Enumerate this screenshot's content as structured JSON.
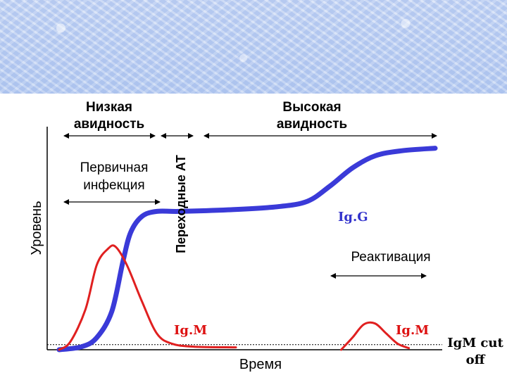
{
  "chart_data": {
    "type": "line",
    "ylabel": "Уровень",
    "xlabel": "Время",
    "x_range": [
      0,
      100
    ],
    "y_range": [
      0,
      100
    ],
    "series": [
      {
        "name": "IgG",
        "color": "#3a3ad8",
        "points": [
          [
            0,
            0
          ],
          [
            6,
            1.5
          ],
          [
            10,
            6
          ],
          [
            14,
            19
          ],
          [
            17,
            44
          ],
          [
            19,
            58
          ],
          [
            22,
            66
          ],
          [
            26,
            68.5
          ],
          [
            32,
            68.5
          ],
          [
            45,
            69.3
          ],
          [
            58,
            70.8
          ],
          [
            66,
            73.5
          ],
          [
            72,
            81
          ],
          [
            78,
            90
          ],
          [
            84,
            96
          ],
          [
            91,
            98.5
          ],
          [
            100,
            99.8
          ]
        ]
      },
      {
        "name": "IgM",
        "color": "#e02020",
        "points": [
          [
            0,
            0
          ],
          [
            3,
            4
          ],
          [
            7,
            20
          ],
          [
            10,
            42
          ],
          [
            13,
            50
          ],
          [
            15,
            51
          ],
          [
            18,
            42
          ],
          [
            22,
            24
          ],
          [
            26,
            8
          ],
          [
            30,
            3
          ],
          [
            36,
            1.5
          ],
          [
            47,
            1.2
          ]
        ]
      },
      {
        "name": "IgM (реактивация)",
        "color": "#e02020",
        "points": [
          [
            75,
            0
          ],
          [
            78,
            6
          ],
          [
            81,
            12.5
          ],
          [
            84,
            13
          ],
          [
            87,
            8
          ],
          [
            90,
            3
          ],
          [
            93,
            0.8
          ]
        ]
      }
    ],
    "cutoff": {
      "y": 2.5,
      "label_line1": "IgM cut",
      "label_line2": "off"
    },
    "labels": {
      "low_avidity_line1": "Низкая",
      "low_avidity_line2": "авидность",
      "high_avidity_line1": "Высокая",
      "high_avidity_line2": "авидность",
      "transitional": "Переходные АТ",
      "primary_line1": "Первичная",
      "primary_line2": "инфекция",
      "reactivation": "Реактивация",
      "igg": "Ig.G",
      "igm_primary": "Ig.M",
      "igm_reactivation": "Ig.M"
    }
  }
}
